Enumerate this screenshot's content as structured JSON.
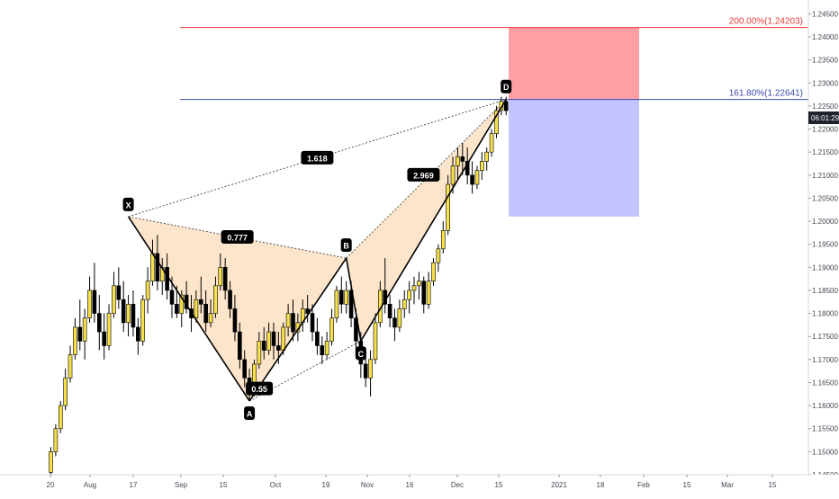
{
  "chart_data": {
    "type": "candlestick",
    "y_axis": {
      "range": [
        1.145,
        1.248
      ],
      "ticks": [
        "1.14500",
        "1.15000",
        "1.15500",
        "1.16000",
        "1.16500",
        "1.17000",
        "1.17500",
        "1.18000",
        "1.18500",
        "1.19000",
        "1.19500",
        "1.20000",
        "1.20500",
        "1.21000",
        "1.21500",
        "1.22000",
        "1.22500",
        "1.23000",
        "1.23500",
        "1.24000",
        "1.24500"
      ],
      "position": "right",
      "current_price_label": "06:01:29"
    },
    "x_axis": {
      "ticks": [
        "20",
        "Aug",
        "17",
        "Sep",
        "15",
        "Oct",
        "19",
        "Nov",
        "16",
        "Dec",
        "15",
        "2021",
        "18",
        "Feb",
        "15",
        "Mar",
        "15"
      ]
    },
    "candles_ohlc": [
      [
        1.1455,
        1.151,
        1.1445,
        1.15
      ],
      [
        1.15,
        1.156,
        1.149,
        1.155
      ],
      [
        1.155,
        1.161,
        1.154,
        1.16
      ],
      [
        1.16,
        1.168,
        1.159,
        1.166
      ],
      [
        1.166,
        1.173,
        1.165,
        1.171
      ],
      [
        1.171,
        1.179,
        1.17,
        1.177
      ],
      [
        1.177,
        1.183,
        1.172,
        1.174
      ],
      [
        1.174,
        1.181,
        1.17,
        1.179
      ],
      [
        1.179,
        1.188,
        1.178,
        1.185
      ],
      [
        1.185,
        1.191,
        1.178,
        1.18
      ],
      [
        1.18,
        1.184,
        1.172,
        1.176
      ],
      [
        1.176,
        1.18,
        1.17,
        1.173
      ],
      [
        1.173,
        1.182,
        1.172,
        1.18
      ],
      [
        1.18,
        1.189,
        1.179,
        1.186
      ],
      [
        1.186,
        1.19,
        1.181,
        1.183
      ],
      [
        1.183,
        1.187,
        1.176,
        1.178
      ],
      [
        1.178,
        1.184,
        1.175,
        1.182
      ],
      [
        1.182,
        1.185,
        1.175,
        1.177
      ],
      [
        1.177,
        1.179,
        1.171,
        1.174
      ],
      [
        1.174,
        1.184,
        1.173,
        1.183
      ],
      [
        1.183,
        1.19,
        1.18,
        1.187
      ],
      [
        1.187,
        1.196,
        1.186,
        1.193
      ],
      [
        1.193,
        1.197,
        1.185,
        1.187
      ],
      [
        1.187,
        1.192,
        1.184,
        1.19
      ],
      [
        1.19,
        1.193,
        1.183,
        1.185
      ],
      [
        1.185,
        1.188,
        1.179,
        1.182
      ],
      [
        1.182,
        1.186,
        1.179,
        1.18
      ],
      [
        1.18,
        1.185,
        1.177,
        1.184
      ],
      [
        1.184,
        1.187,
        1.18,
        1.181
      ],
      [
        1.181,
        1.184,
        1.176,
        1.179
      ],
      [
        1.179,
        1.185,
        1.178,
        1.183
      ],
      [
        1.183,
        1.188,
        1.18,
        1.182
      ],
      [
        1.182,
        1.185,
        1.176,
        1.178
      ],
      [
        1.178,
        1.183,
        1.177,
        1.18
      ],
      [
        1.18,
        1.188,
        1.179,
        1.186
      ],
      [
        1.186,
        1.193,
        1.185,
        1.19
      ],
      [
        1.19,
        1.192,
        1.183,
        1.185
      ],
      [
        1.185,
        1.187,
        1.179,
        1.181
      ],
      [
        1.181,
        1.184,
        1.174,
        1.176
      ],
      [
        1.176,
        1.178,
        1.168,
        1.17
      ],
      [
        1.17,
        1.172,
        1.164,
        1.166
      ],
      [
        1.166,
        1.168,
        1.161,
        1.164
      ],
      [
        1.164,
        1.17,
        1.162,
        1.169
      ],
      [
        1.169,
        1.176,
        1.168,
        1.174
      ],
      [
        1.174,
        1.177,
        1.17,
        1.172
      ],
      [
        1.172,
        1.178,
        1.171,
        1.176
      ],
      [
        1.176,
        1.178,
        1.17,
        1.173
      ],
      [
        1.173,
        1.176,
        1.169,
        1.172
      ],
      [
        1.172,
        1.178,
        1.171,
        1.177
      ],
      [
        1.177,
        1.182,
        1.175,
        1.18
      ],
      [
        1.18,
        1.183,
        1.174,
        1.176
      ],
      [
        1.176,
        1.18,
        1.174,
        1.178
      ],
      [
        1.178,
        1.183,
        1.176,
        1.181
      ],
      [
        1.181,
        1.184,
        1.178,
        1.18
      ],
      [
        1.18,
        1.182,
        1.174,
        1.176
      ],
      [
        1.176,
        1.179,
        1.171,
        1.173
      ],
      [
        1.173,
        1.175,
        1.169,
        1.171
      ],
      [
        1.171,
        1.176,
        1.17,
        1.174
      ],
      [
        1.174,
        1.181,
        1.173,
        1.179
      ],
      [
        1.179,
        1.186,
        1.178,
        1.185
      ],
      [
        1.185,
        1.188,
        1.18,
        1.182
      ],
      [
        1.182,
        1.187,
        1.18,
        1.185
      ],
      [
        1.185,
        1.187,
        1.177,
        1.179
      ],
      [
        1.179,
        1.181,
        1.172,
        1.174
      ],
      [
        1.174,
        1.176,
        1.166,
        1.169
      ],
      [
        1.169,
        1.172,
        1.164,
        1.166
      ],
      [
        1.166,
        1.172,
        1.162,
        1.17
      ],
      [
        1.17,
        1.18,
        1.169,
        1.178
      ],
      [
        1.178,
        1.187,
        1.177,
        1.185
      ],
      [
        1.185,
        1.192,
        1.18,
        1.182
      ],
      [
        1.182,
        1.184,
        1.177,
        1.179
      ],
      [
        1.179,
        1.181,
        1.174,
        1.177
      ],
      [
        1.177,
        1.183,
        1.176,
        1.181
      ],
      [
        1.181,
        1.185,
        1.179,
        1.183
      ],
      [
        1.183,
        1.187,
        1.18,
        1.185
      ],
      [
        1.185,
        1.188,
        1.182,
        1.186
      ],
      [
        1.186,
        1.189,
        1.183,
        1.187
      ],
      [
        1.187,
        1.188,
        1.18,
        1.182
      ],
      [
        1.182,
        1.189,
        1.181,
        1.187
      ],
      [
        1.187,
        1.192,
        1.186,
        1.191
      ],
      [
        1.191,
        1.195,
        1.189,
        1.194
      ],
      [
        1.194,
        1.2,
        1.193,
        1.198
      ],
      [
        1.198,
        1.21,
        1.197,
        1.208
      ],
      [
        1.208,
        1.214,
        1.206,
        1.212
      ],
      [
        1.212,
        1.216,
        1.209,
        1.214
      ],
      [
        1.214,
        1.217,
        1.21,
        1.213
      ],
      [
        1.213,
        1.216,
        1.208,
        1.21
      ],
      [
        1.21,
        1.213,
        1.206,
        1.208
      ],
      [
        1.208,
        1.212,
        1.207,
        1.211
      ],
      [
        1.211,
        1.215,
        1.209,
        1.213
      ],
      [
        1.213,
        1.216,
        1.211,
        1.215
      ],
      [
        1.215,
        1.22,
        1.214,
        1.219
      ],
      [
        1.219,
        1.225,
        1.218,
        1.224
      ],
      [
        1.224,
        1.227,
        1.223,
        1.226
      ],
      [
        1.226,
        1.227,
        1.223,
        1.224
      ]
    ],
    "pattern": {
      "points": [
        {
          "label": "X",
          "index": 16,
          "price": 1.201
        },
        {
          "label": "A",
          "index": 41,
          "price": 1.161
        },
        {
          "label": "B",
          "index": 61,
          "price": 1.192
        },
        {
          "label": "C",
          "index": 64,
          "price": 1.174
        },
        {
          "label": "D",
          "index": 94,
          "price": 1.2264
        }
      ],
      "ratios": [
        {
          "text": "0.777",
          "between": "XB"
        },
        {
          "text": "0.55",
          "between": "AC"
        },
        {
          "text": "2.969",
          "between": "BD"
        },
        {
          "text": "1.618",
          "between": "XD"
        }
      ],
      "fill_color": "#fde0c2",
      "line_color": "#000000"
    },
    "levels": [
      {
        "label": "200.00%(1.24203)",
        "price": 1.24203,
        "color": "#e53935"
      },
      {
        "label": "161.80%(1.22641)",
        "price": 1.22641,
        "color": "#3949ab"
      }
    ],
    "position_tool": {
      "entry": 1.22641,
      "stop": 1.24203,
      "target": 1.201,
      "stop_color": "#ff9ea3",
      "target_color": "#c3c3ff"
    },
    "colors": {
      "up": "#f7e14a",
      "down": "#000000",
      "wick": "#000000",
      "axis_text": "#434651"
    }
  }
}
